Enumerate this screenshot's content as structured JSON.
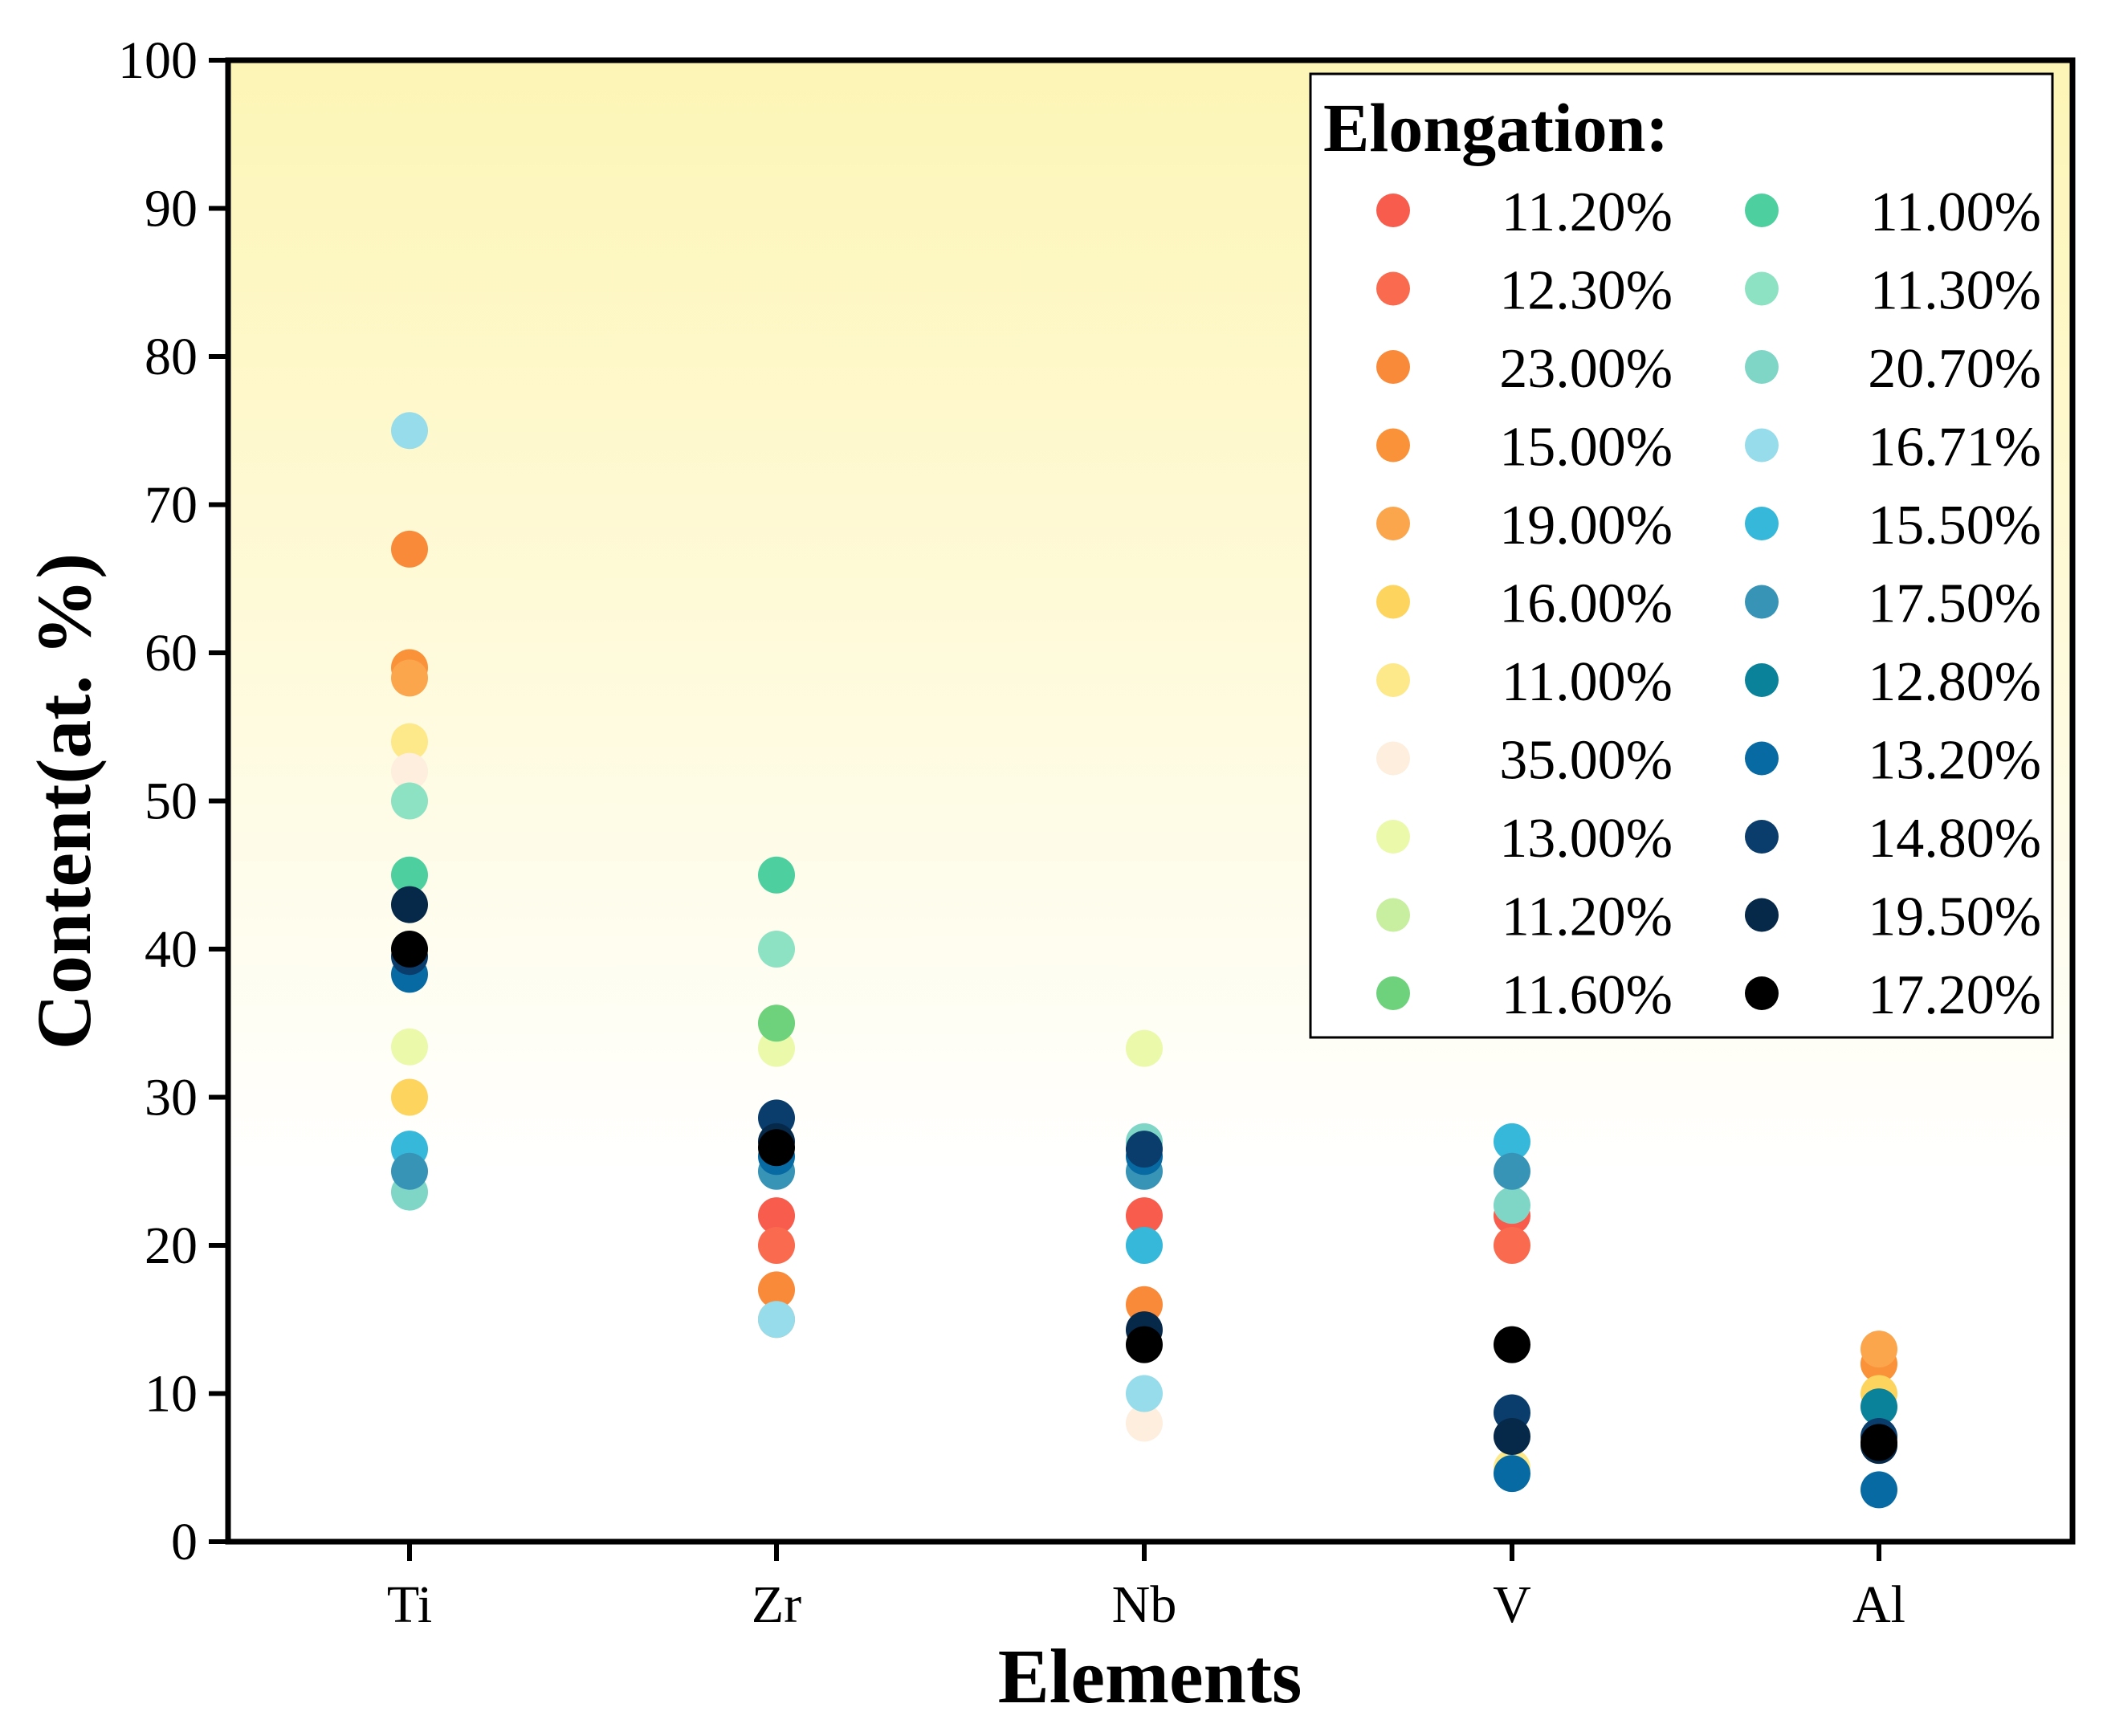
{
  "chart_data": {
    "type": "scatter",
    "title": "",
    "xlabel": "Elements",
    "ylabel": "Content(at. %)",
    "categories": [
      "Ti",
      "Zr",
      "Nb",
      "V",
      "Al"
    ],
    "ylim": [
      0,
      100
    ],
    "yticks": [
      "0",
      "10",
      "20",
      "30",
      "40",
      "50",
      "60",
      "70",
      "80",
      "90",
      "100"
    ],
    "grid": false,
    "background": "vertical gradient: pale yellow at top fading to white near y=30",
    "legend": {
      "title": "Elongation:",
      "position": "top-right",
      "columns": 2
    },
    "series": [
      {
        "name": "11.20%",
        "color": "#f75c4c",
        "values": [
          null,
          22,
          22,
          22,
          null
        ]
      },
      {
        "name": "12.30%",
        "color": "#fa6a4f",
        "values": [
          null,
          20,
          null,
          20,
          null
        ]
      },
      {
        "name": "23.00%",
        "color": "#f98a3a",
        "values": [
          67,
          17,
          16,
          null,
          null
        ]
      },
      {
        "name": "15.00%",
        "color": "#fa9239",
        "values": [
          59,
          15,
          null,
          null,
          12
        ]
      },
      {
        "name": "19.00%",
        "color": "#fba54c",
        "values": [
          58.3,
          null,
          null,
          null,
          13
        ]
      },
      {
        "name": "16.00%",
        "color": "#fdd45e",
        "values": [
          30,
          null,
          null,
          null,
          10
        ]
      },
      {
        "name": "11.00%",
        "color": "#fde88a",
        "values": [
          54,
          null,
          null,
          5,
          null
        ]
      },
      {
        "name": "35.00%",
        "color": "#fdeedd",
        "values": [
          52,
          null,
          8,
          null,
          null
        ]
      },
      {
        "name": "13.00%",
        "color": "#eaf9aa",
        "values": [
          33.4,
          33.3,
          33.3,
          null,
          null
        ]
      },
      {
        "name": "11.20%",
        "color": "#c8eea0",
        "values": [
          null,
          35,
          null,
          null,
          null
        ]
      },
      {
        "name": "11.60%",
        "color": "#6ed27c",
        "values": [
          null,
          35,
          null,
          null,
          null
        ]
      },
      {
        "name": "11.00%",
        "color": "#4ecf9f",
        "values": [
          45,
          45,
          null,
          null,
          null
        ]
      },
      {
        "name": "11.30%",
        "color": "#8de2c3",
        "values": [
          50,
          40,
          null,
          null,
          null
        ]
      },
      {
        "name": "20.70%",
        "color": "#7fd6c6",
        "values": [
          23.6,
          null,
          27,
          22.7,
          null
        ]
      },
      {
        "name": "16.71%",
        "color": "#96dcea",
        "values": [
          75,
          15,
          10,
          null,
          null
        ]
      },
      {
        "name": "15.50%",
        "color": "#35b8da",
        "values": [
          26.5,
          null,
          20,
          27,
          null
        ]
      },
      {
        "name": "17.50%",
        "color": "#3894b6",
        "values": [
          25,
          25,
          25,
          25,
          null
        ]
      },
      {
        "name": "12.80%",
        "color": "#0a8299",
        "values": [
          null,
          null,
          null,
          null,
          9.1
        ]
      },
      {
        "name": "13.20%",
        "color": "#086aa3",
        "values": [
          38.3,
          26,
          26,
          4.6,
          3.5
        ]
      },
      {
        "name": "14.80%",
        "color": "#0a3d6b",
        "values": [
          39.5,
          28.6,
          26.5,
          8.7,
          7.1
        ]
      },
      {
        "name": "19.50%",
        "color": "#062849",
        "values": [
          43,
          27,
          14.3,
          7.1,
          6.5
        ]
      },
      {
        "name": "17.20%",
        "color": "#000000",
        "values": [
          40,
          26.6,
          13.3,
          13.3,
          6.7
        ]
      }
    ]
  }
}
